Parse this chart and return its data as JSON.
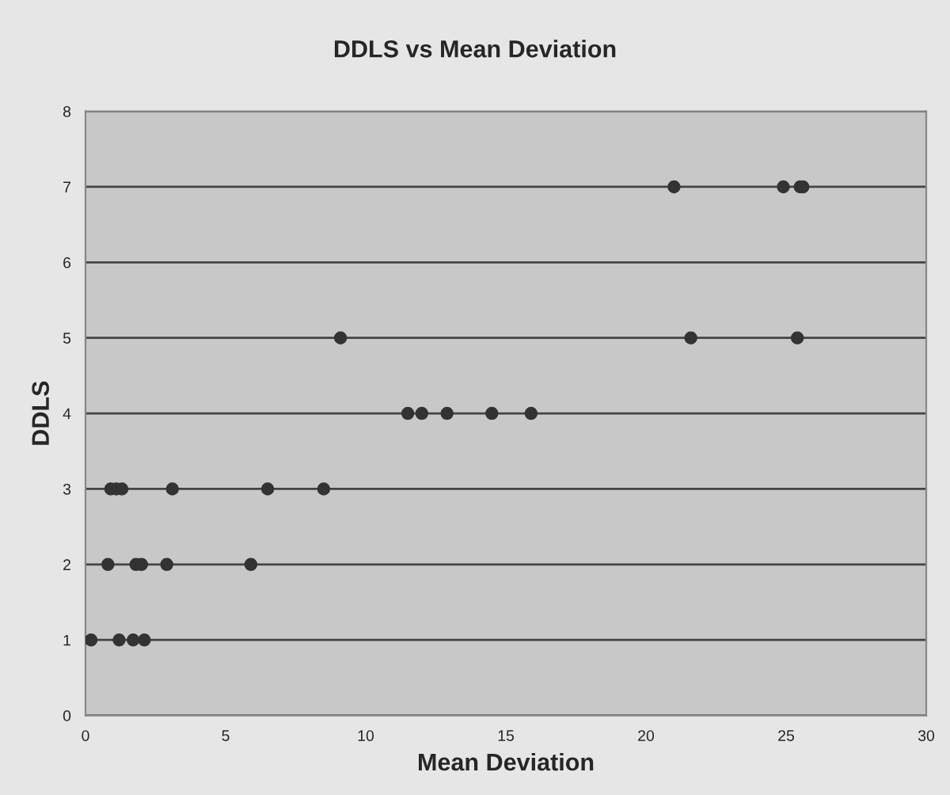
{
  "chart_data": {
    "type": "scatter",
    "title": "DDLS vs Mean Deviation",
    "xlabel": "Mean Deviation",
    "ylabel": "DDLS",
    "x": [
      0.2,
      1.2,
      1.7,
      2.1,
      0.8,
      1.8,
      2.0,
      2.9,
      5.9,
      0.9,
      1.1,
      1.3,
      3.1,
      6.5,
      8.5,
      11.5,
      12.0,
      12.9,
      14.5,
      15.9,
      9.1,
      21.6,
      25.4,
      21.0,
      24.9,
      25.5,
      25.6
    ],
    "values": [
      1,
      1,
      1,
      1,
      2,
      2,
      2,
      2,
      2,
      3,
      3,
      3,
      3,
      3,
      3,
      4,
      4,
      4,
      4,
      4,
      5,
      5,
      5,
      7,
      7,
      7,
      7
    ],
    "color": "#333333",
    "marker": "circle",
    "xlim": [
      0,
      30
    ],
    "xticks": [
      0,
      5,
      10,
      15,
      20,
      25,
      30
    ],
    "ylim": [
      0,
      8
    ],
    "yticks": [
      0,
      1,
      2,
      3,
      4,
      5,
      6,
      7,
      8
    ],
    "grid": "y"
  }
}
